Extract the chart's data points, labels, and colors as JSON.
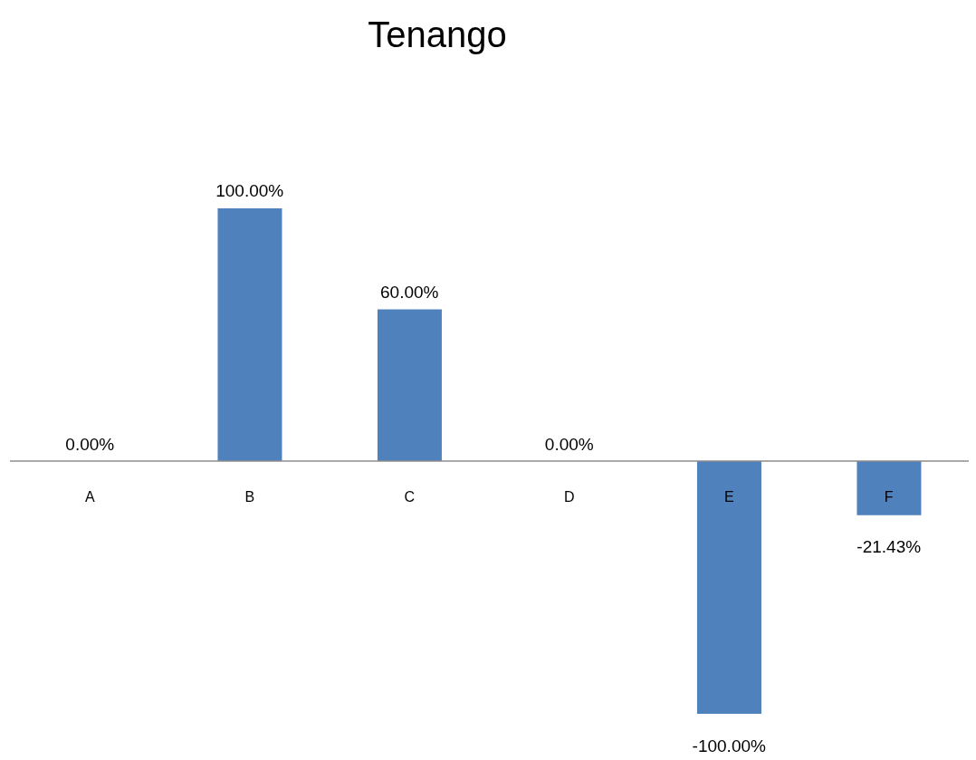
{
  "chart_data": {
    "type": "bar",
    "title": "Tenango",
    "categories": [
      "A",
      "B",
      "C",
      "D",
      "E",
      "F"
    ],
    "values": [
      0,
      100,
      60,
      0,
      -100,
      -21.43
    ],
    "value_labels": [
      "0.00%",
      "100.00%",
      "60.00%",
      "0.00%",
      "-100.00%",
      "-21.43%"
    ],
    "color": "#4f81bd",
    "tick_labels": "x"
  }
}
